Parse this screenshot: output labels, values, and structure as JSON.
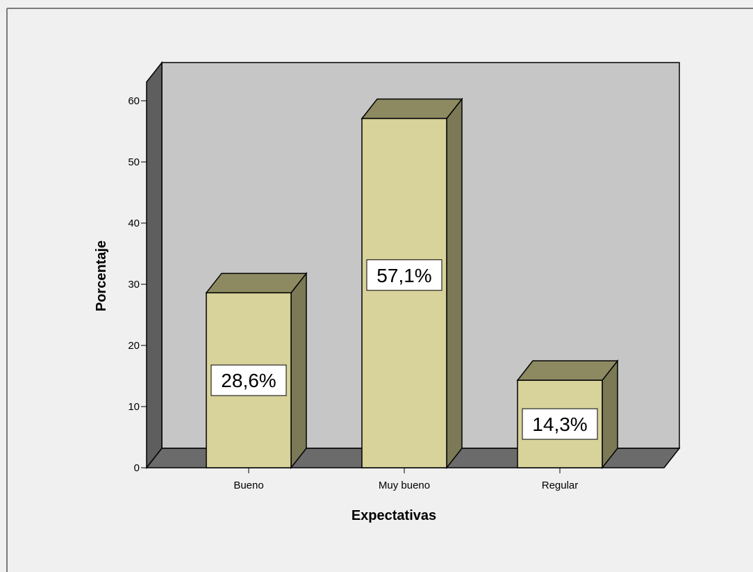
{
  "colors": {
    "background": "#f0f0f0",
    "plot_back": "#c6c6c6",
    "wall_side": "#5e5e5e",
    "floor": "#6b6b6b",
    "bar_front": "#d8d29b",
    "bar_top": "#8d8a61",
    "bar_side": "#7b7956",
    "edge": "#000000"
  },
  "chart_data": {
    "type": "bar",
    "style": "3d",
    "categories": [
      "Bueno",
      "Muy bueno",
      "Regular"
    ],
    "values": [
      28.6,
      57.1,
      14.3
    ],
    "value_labels": [
      "28,6%",
      "57,1%",
      "14,3%"
    ],
    "xlabel": "Expectativas",
    "ylabel": "Porcentaje",
    "ylim": [
      0,
      60
    ],
    "yticks": [
      0,
      10,
      20,
      30,
      40,
      50,
      60
    ],
    "legend": "none",
    "grid": false
  }
}
